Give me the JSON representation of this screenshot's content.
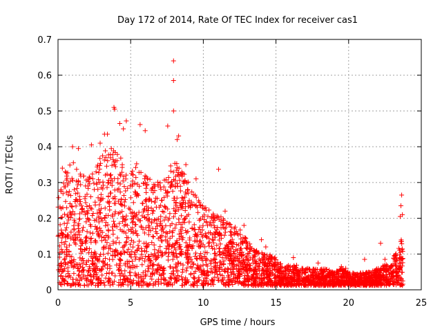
{
  "chart_data": {
    "type": "scatter",
    "title": "Day 172 of 2014, Rate Of TEC Index for receiver cas1",
    "xlabel": "GPS time / hours",
    "ylabel": "ROTI / TECUs",
    "xlim": [
      0,
      25
    ],
    "ylim": [
      0,
      0.7
    ],
    "x_ticks": [
      0,
      5,
      10,
      15,
      20,
      25
    ],
    "x_tick_labels": [
      "0",
      "5",
      "10",
      "15",
      "20",
      "25"
    ],
    "y_ticks": [
      0,
      0.1,
      0.2,
      0.3,
      0.4,
      0.5,
      0.6,
      0.7
    ],
    "y_tick_labels": [
      "0",
      "0.1",
      "0.2",
      "0.3",
      "0.4",
      "0.5",
      "0.6",
      "0.7"
    ],
    "grid": true,
    "marker": "+",
    "color": "#ff0000",
    "series": [
      {
        "name": "ROTI",
        "points": [
          [
            7.95,
            0.64
          ],
          [
            7.95,
            0.585
          ],
          [
            7.95,
            0.5
          ],
          [
            3.85,
            0.51
          ],
          [
            3.9,
            0.505
          ],
          [
            4.25,
            0.465
          ],
          [
            4.5,
            0.45
          ],
          [
            4.7,
            0.472
          ],
          [
            5.65,
            0.462
          ],
          [
            7.55,
            0.458
          ],
          [
            3.2,
            0.435
          ],
          [
            3.4,
            0.435
          ],
          [
            6.0,
            0.445
          ],
          [
            8.3,
            0.43
          ],
          [
            8.2,
            0.42
          ],
          [
            8.8,
            0.35
          ],
          [
            1.0,
            0.4
          ],
          [
            1.4,
            0.395
          ],
          [
            2.3,
            0.405
          ],
          [
            2.9,
            0.41
          ],
          [
            11.05,
            0.337
          ],
          [
            0.3,
            0.34
          ],
          [
            0.5,
            0.33
          ],
          [
            9.5,
            0.31
          ],
          [
            23.65,
            0.265
          ],
          [
            23.6,
            0.235
          ],
          [
            23.55,
            0.205
          ],
          [
            23.7,
            0.21
          ],
          [
            14.0,
            0.14
          ],
          [
            14.3,
            0.12
          ],
          [
            16.2,
            0.09
          ],
          [
            19.5,
            0.065
          ],
          [
            19.8,
            0.06
          ],
          [
            21.1,
            0.085
          ],
          [
            22.5,
            0.085
          ],
          [
            22.2,
            0.13
          ],
          [
            17.9,
            0.075
          ],
          [
            20.5,
            0.04
          ],
          [
            12.8,
            0.18
          ],
          [
            11.5,
            0.22
          ]
        ]
      }
    ],
    "envelope": [
      [
        0.0,
        0.28
      ],
      [
        0.5,
        0.33
      ],
      [
        1.0,
        0.36
      ],
      [
        1.5,
        0.33
      ],
      [
        2.0,
        0.33
      ],
      [
        2.5,
        0.36
      ],
      [
        3.0,
        0.38
      ],
      [
        3.5,
        0.4
      ],
      [
        4.0,
        0.4
      ],
      [
        4.5,
        0.36
      ],
      [
        5.0,
        0.33
      ],
      [
        5.5,
        0.36
      ],
      [
        6.0,
        0.34
      ],
      [
        6.5,
        0.3
      ],
      [
        7.0,
        0.31
      ],
      [
        7.5,
        0.34
      ],
      [
        8.0,
        0.36
      ],
      [
        8.5,
        0.34
      ],
      [
        9.0,
        0.3
      ],
      [
        9.5,
        0.26
      ],
      [
        10.0,
        0.24
      ],
      [
        10.5,
        0.22
      ],
      [
        11.0,
        0.22
      ],
      [
        11.5,
        0.2
      ],
      [
        12.0,
        0.18
      ],
      [
        12.5,
        0.17
      ],
      [
        13.0,
        0.14
      ],
      [
        13.5,
        0.11
      ],
      [
        14.0,
        0.11
      ],
      [
        14.5,
        0.1
      ],
      [
        15.0,
        0.09
      ],
      [
        15.5,
        0.07
      ],
      [
        16.0,
        0.07
      ],
      [
        16.5,
        0.07
      ],
      [
        17.0,
        0.06
      ],
      [
        17.5,
        0.06
      ],
      [
        18.0,
        0.06
      ],
      [
        18.5,
        0.06
      ],
      [
        19.0,
        0.05
      ],
      [
        19.5,
        0.06
      ],
      [
        20.0,
        0.05
      ],
      [
        20.5,
        0.045
      ],
      [
        21.0,
        0.05
      ],
      [
        21.5,
        0.05
      ],
      [
        22.0,
        0.06
      ],
      [
        22.5,
        0.07
      ],
      [
        23.0,
        0.08
      ],
      [
        23.5,
        0.14
      ],
      [
        23.75,
        0.16
      ]
    ]
  }
}
